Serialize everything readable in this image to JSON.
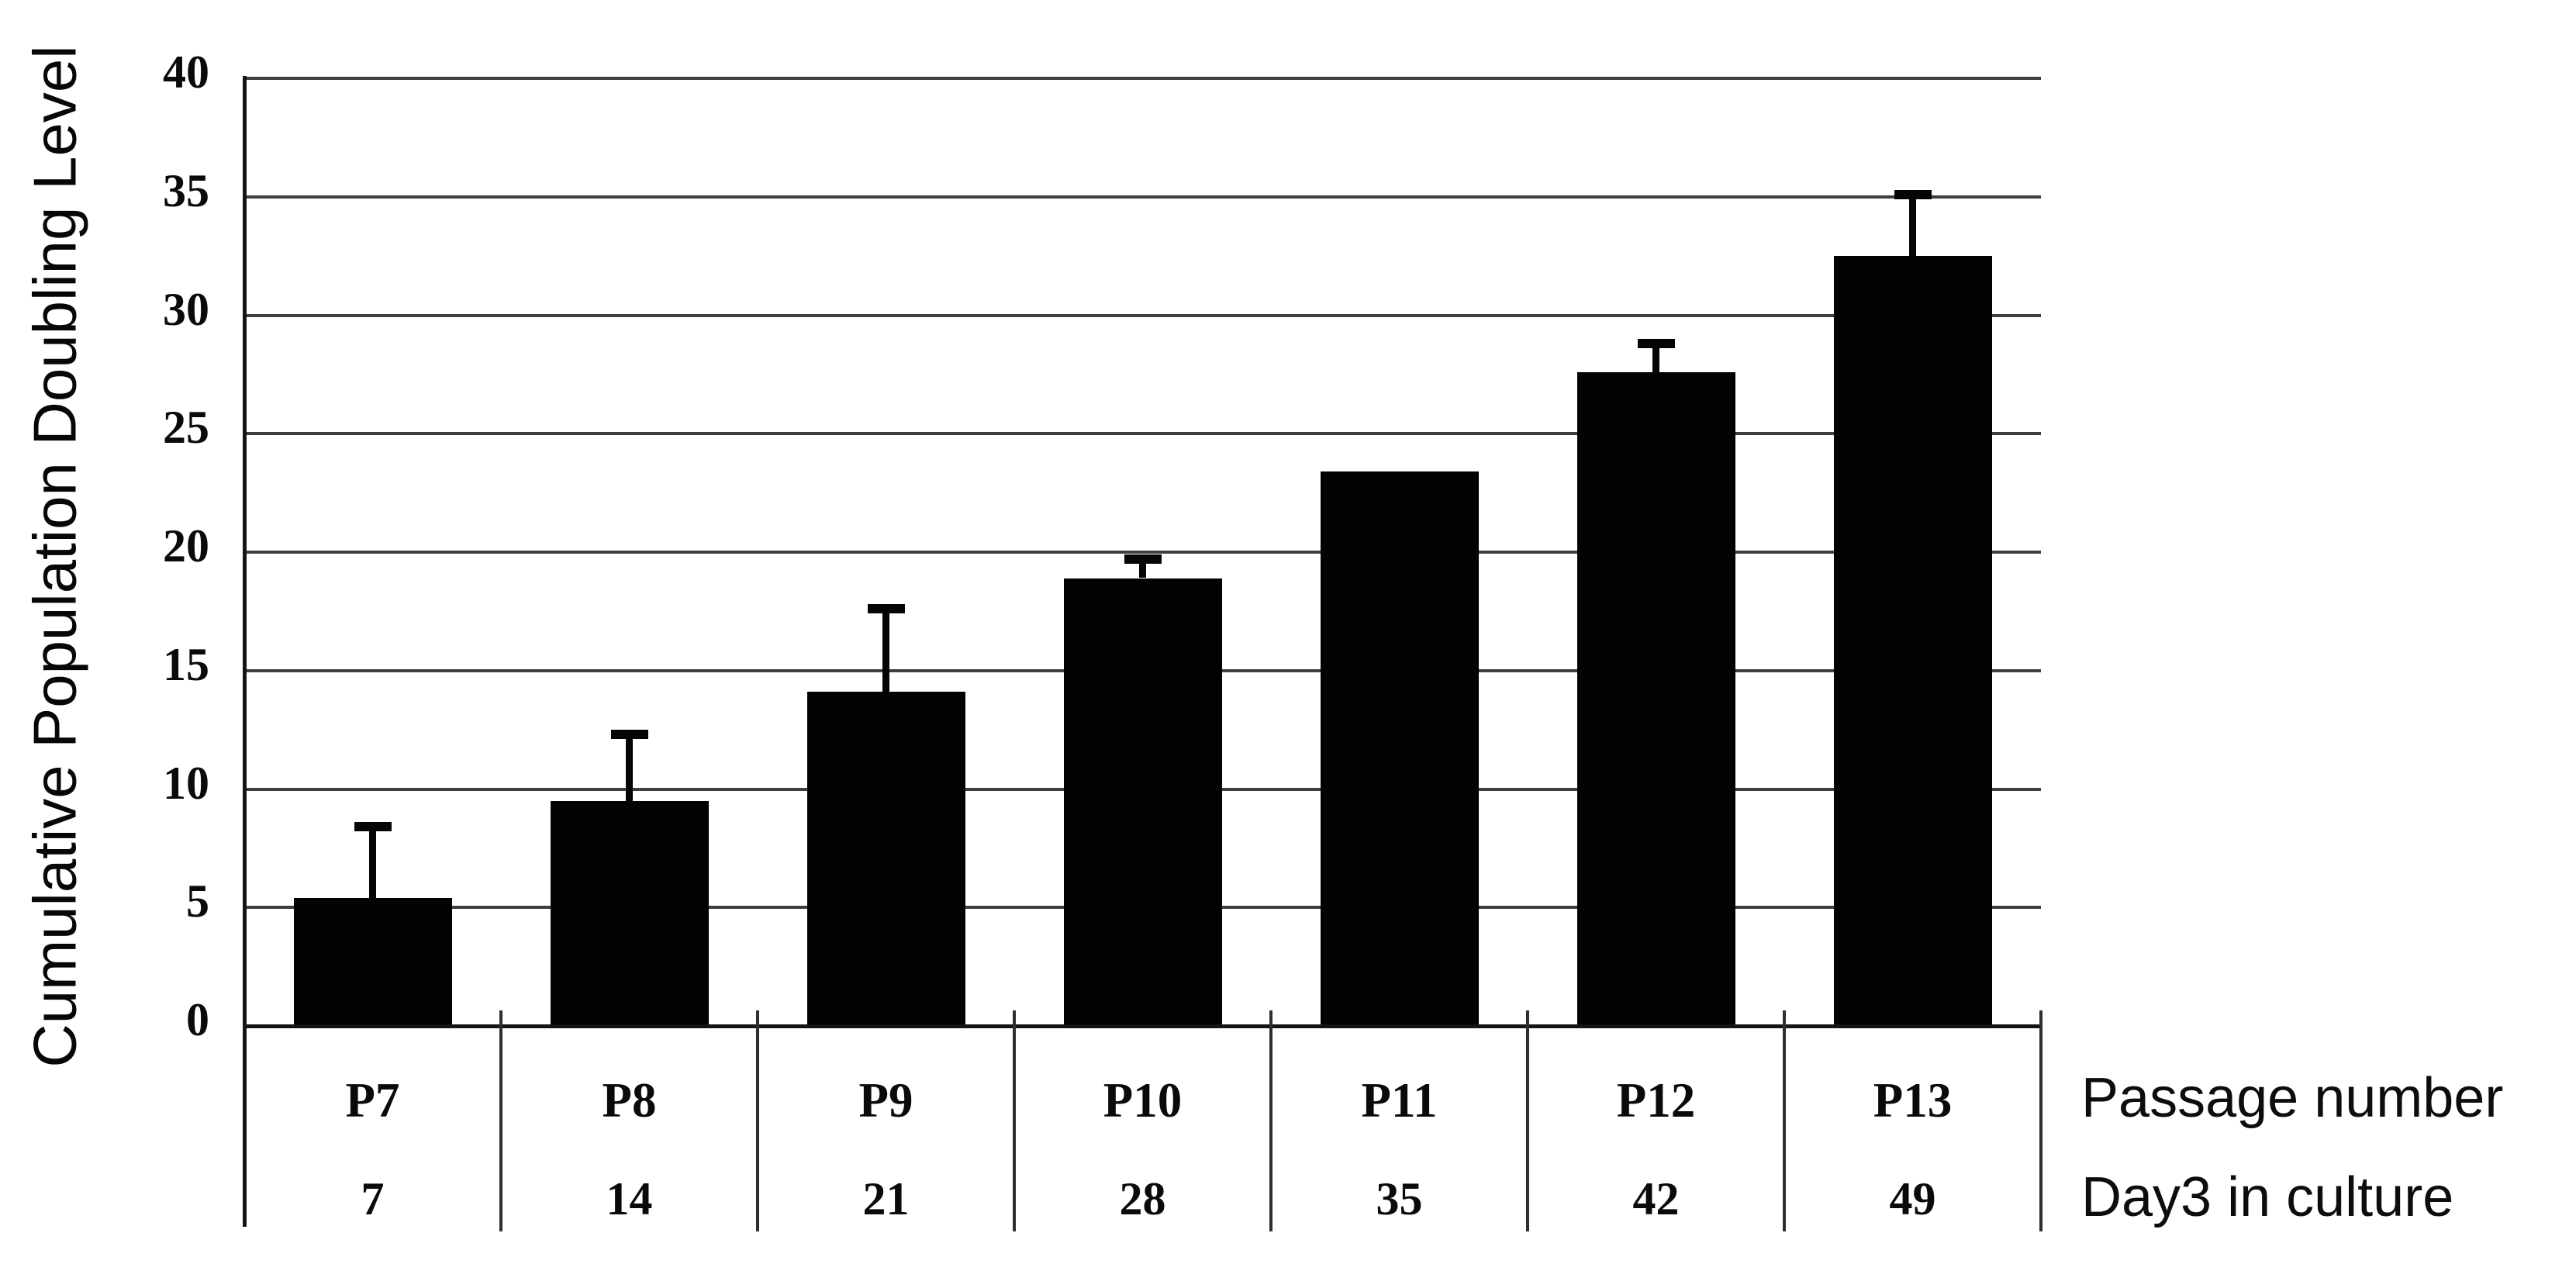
{
  "chart_data": {
    "type": "bar",
    "title": "",
    "ylabel": "Cumulative Population Doubling Level",
    "xlabel_line1": "Passage number",
    "xlabel_line2": "Day3 in culture",
    "categories": [
      "P7",
      "P8",
      "P9",
      "P10",
      "P11",
      "P12",
      "P13"
    ],
    "x_row2_days": [
      "7",
      "14",
      "21",
      "28",
      "35",
      "42",
      "49"
    ],
    "values": [
      5.4,
      9.5,
      14.1,
      18.9,
      23.4,
      27.6,
      32.5
    ],
    "error_plus": [
      3.0,
      2.8,
      3.5,
      0.8,
      0,
      1.2,
      2.6
    ],
    "yticks": [
      0,
      5,
      10,
      15,
      20,
      25,
      30,
      35,
      40
    ],
    "ylim": [
      0,
      40
    ],
    "grid": "horizontal",
    "legend": "none",
    "bar_color": "#020202",
    "gridline_color": "#3f3f3f",
    "axis_color": "#141414",
    "background_color": "#ffffff"
  }
}
